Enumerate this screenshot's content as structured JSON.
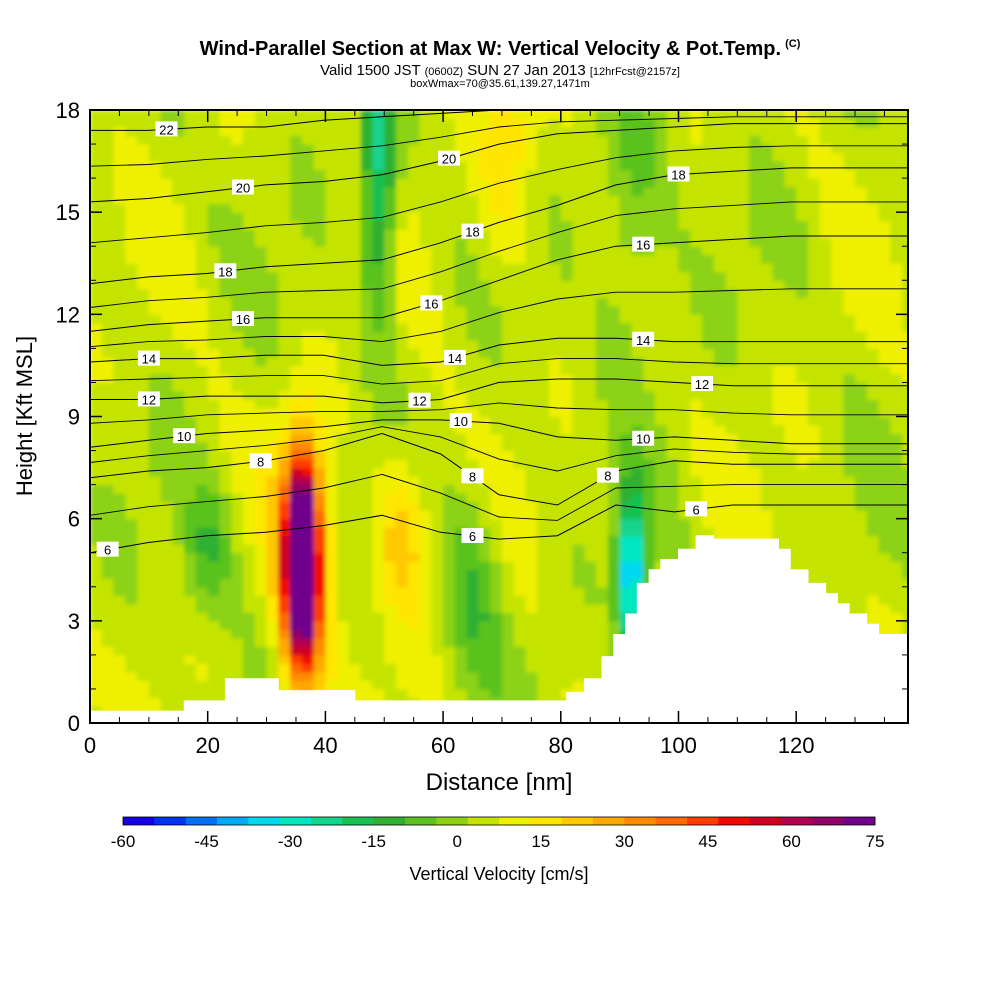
{
  "title": {
    "main": "Wind-Parallel Section at Max W: Vertical Velocity & Pot.Temp.",
    "copyright": "(C)",
    "valid_prefix": "Valid 1500 JST",
    "valid_zulu": "(0600Z)",
    "valid_date": "SUN 27 Jan 2013",
    "forecast": "[12hrFcst@2157z]",
    "box": "boxWmax=70@35.61,139.27,1471m"
  },
  "chart_data": {
    "type": "heatmap",
    "xlabel": "Distance [nm]",
    "ylabel": "Height [Kft MSL]",
    "xlim": [
      0,
      139
    ],
    "ylim": [
      0,
      18
    ],
    "x_ticks": [
      "0",
      "20",
      "40",
      "60",
      "80",
      "100",
      "120"
    ],
    "y_ticks": [
      "0",
      "3",
      "6",
      "9",
      "12",
      "15",
      "18"
    ],
    "colorbar": {
      "label": "Vertical Velocity [cm/s]",
      "tick_labels": [
        "-60",
        "-45",
        "-30",
        "-15",
        "0",
        "15",
        "30",
        "45",
        "60",
        "75"
      ],
      "colors": [
        "#1400e6",
        "#0032f0",
        "#0070f5",
        "#00a8f8",
        "#00d8f0",
        "#00e6c0",
        "#12d48a",
        "#18c050",
        "#2fb030",
        "#5ac21a",
        "#8cd214",
        "#c4e400",
        "#eef000",
        "#ffe600",
        "#ffc800",
        "#ffa800",
        "#ff8a00",
        "#ff6a00",
        "#ff3c00",
        "#f00a00",
        "#d00020",
        "#b00050",
        "#900068",
        "#70008c"
      ]
    },
    "terrain_kft": [
      [
        0,
        0.35
      ],
      [
        16,
        0.35
      ],
      [
        16,
        0.65
      ],
      [
        23,
        0.65
      ],
      [
        23,
        1.3
      ],
      [
        32,
        1.3
      ],
      [
        32,
        0.95
      ],
      [
        45,
        0.95
      ],
      [
        45,
        0.65
      ],
      [
        81,
        0.65
      ],
      [
        81,
        0.9
      ],
      [
        84,
        0.9
      ],
      [
        84,
        1.3
      ],
      [
        87,
        1.3
      ],
      [
        87,
        1.95
      ],
      [
        89,
        1.95
      ],
      [
        89,
        2.6
      ],
      [
        91,
        2.6
      ],
      [
        91,
        3.2
      ],
      [
        93,
        3.2
      ],
      [
        93,
        4.1
      ],
      [
        95,
        4.1
      ],
      [
        95,
        4.5
      ],
      [
        97,
        4.5
      ],
      [
        97,
        4.8
      ],
      [
        100,
        4.8
      ],
      [
        100,
        5.1
      ],
      [
        103,
        5.1
      ],
      [
        103,
        5.5
      ],
      [
        106,
        5.5
      ],
      [
        106,
        5.4
      ],
      [
        117,
        5.4
      ],
      [
        117,
        5.1
      ],
      [
        119,
        5.1
      ],
      [
        119,
        4.5
      ],
      [
        122,
        4.5
      ],
      [
        122,
        4.1
      ],
      [
        125,
        4.1
      ],
      [
        125,
        3.8
      ],
      [
        127,
        3.8
      ],
      [
        127,
        3.5
      ],
      [
        129,
        3.5
      ],
      [
        129,
        3.2
      ],
      [
        132,
        3.2
      ],
      [
        132,
        2.9
      ],
      [
        134,
        2.9
      ],
      [
        134,
        2.6
      ],
      [
        139,
        2.6
      ]
    ],
    "vertical_velocity_features": [
      {
        "x": 36,
        "z": 4.8,
        "rx": 2.5,
        "rz": 2.8,
        "w": 75
      },
      {
        "x": 36,
        "z": 4.5,
        "rx": 4.5,
        "rz": 3.5,
        "w": 40
      },
      {
        "x": 53,
        "z": 5.5,
        "rx": 5,
        "rz": 2.5,
        "w": 18
      },
      {
        "x": 71,
        "z": 16.5,
        "rx": 5,
        "rz": 3,
        "w": 14
      },
      {
        "x": 20,
        "z": 5,
        "rx": 4,
        "rz": 2,
        "w": -14
      },
      {
        "x": 49,
        "z": 16,
        "rx": 3,
        "rz": 4,
        "w": -30
      },
      {
        "x": 65,
        "z": 4,
        "rx": 5,
        "rz": 3,
        "w": -14
      },
      {
        "x": 92,
        "z": 4.2,
        "rx": 2.5,
        "rz": 2.5,
        "w": -45
      },
      {
        "x": 92,
        "z": 15,
        "rx": 6,
        "rz": 4,
        "w": -12
      }
    ],
    "theta_contours": [
      {
        "label": "22",
        "z": [
          17.4,
          17.4,
          17.5,
          17.5,
          17.7,
          17.8,
          17.9,
          18.0,
          18.0,
          18.0,
          18.0,
          18.0,
          18.0,
          18.0,
          18.0
        ],
        "label_x": 13
      },
      {
        "label": "20",
        "z": [
          15.3,
          15.4,
          15.6,
          15.8,
          15.9,
          16.1,
          16.5,
          17.0,
          17.3,
          17.4,
          17.5,
          17.6,
          17.6,
          17.6,
          17.6
        ],
        "label_x": 26,
        "label_x2": 61
      },
      {
        "label": "18",
        "z": [
          12.9,
          13.1,
          13.2,
          13.4,
          13.5,
          13.6,
          14.1,
          14.7,
          15.2,
          15.8,
          16.1,
          16.2,
          16.3,
          16.3,
          16.3
        ],
        "label_x": 23,
        "label_x2": 65,
        "label_x3": 100
      },
      {
        "label": "16",
        "z": [
          11.5,
          11.7,
          11.8,
          11.9,
          11.9,
          11.9,
          12.4,
          13.0,
          13.6,
          14.0,
          14.1,
          14.2,
          14.3,
          14.3,
          14.3
        ],
        "label_x": 26,
        "label_x2": 58,
        "label_x3": 94
      },
      {
        "label": "14",
        "z": [
          10.6,
          10.7,
          10.7,
          10.8,
          10.8,
          10.5,
          10.6,
          11.1,
          11.3,
          11.3,
          11.2,
          11.2,
          11.2,
          11.2,
          11.2
        ],
        "label_x": 10,
        "label_x2": 62,
        "label_x3": 94
      },
      {
        "label": "12",
        "z": [
          9.5,
          9.5,
          9.6,
          9.6,
          9.6,
          9.4,
          9.5,
          10.0,
          10.1,
          10.1,
          10.0,
          9.9,
          9.9,
          9.9,
          9.9
        ],
        "label_x": 10,
        "label_x2": 56,
        "label_x3": 104
      },
      {
        "label": "10",
        "z": [
          8.1,
          8.3,
          8.5,
          8.6,
          8.7,
          8.9,
          8.9,
          8.8,
          8.4,
          8.3,
          8.4,
          8.3,
          8.2,
          8.2,
          8.2
        ],
        "label_x": 16,
        "label_x2": 63,
        "label_x3": 94
      },
      {
        "label": "8",
        "z": [
          7.2,
          7.4,
          7.5,
          7.7,
          8.0,
          8.5,
          7.9,
          6.7,
          6.4,
          7.4,
          7.7,
          7.6,
          7.6,
          7.6,
          7.6
        ],
        "label_x": 29,
        "label_x2": 65,
        "label_x3": 88
      },
      {
        "label": "6",
        "z": [
          5.0,
          5.3,
          5.5,
          5.6,
          5.8,
          6.1,
          5.6,
          5.4,
          5.5,
          6.4,
          6.2,
          6.4,
          6.4,
          6.4,
          6.4
        ],
        "label_x": 3,
        "label_x2": 65,
        "label_x3": 103
      }
    ]
  }
}
